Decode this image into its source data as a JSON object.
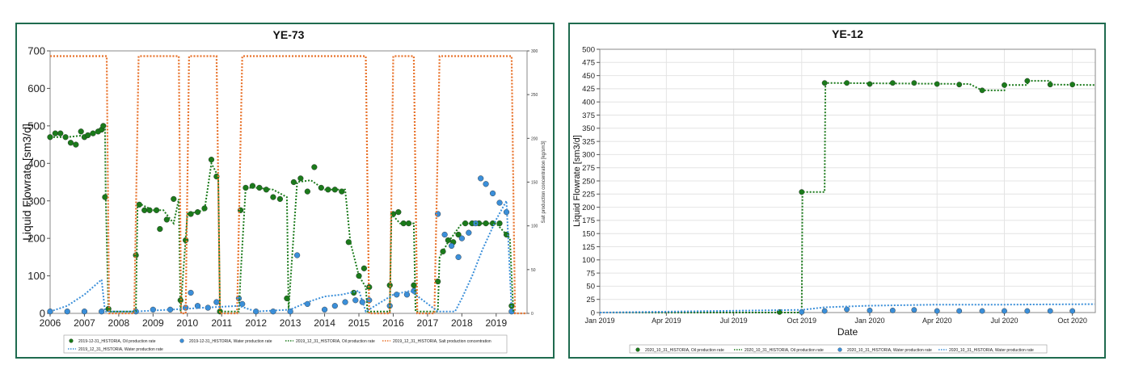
{
  "charts": [
    {
      "title": "YE-73",
      "ylabel": "Liquid Flowrate [sm3/d]",
      "y2label": "Salt production concentration [kg/sm3]",
      "xticks": [
        "2006",
        "2007",
        "2008",
        "2009",
        "2010",
        "2011",
        "2012",
        "2013",
        "2014",
        "2015",
        "2016",
        "2017",
        "2018",
        "2019"
      ],
      "yticks": [
        "0",
        "100",
        "200",
        "300",
        "400",
        "500",
        "600",
        "700"
      ],
      "y2ticks": [
        "0",
        "50",
        "100",
        "150",
        "200",
        "250",
        "300"
      ],
      "legend": [
        "2019-12-31_HISTORIA, Oil production rate",
        "2019-12-31_HISTORIA, Water production rate",
        "2019_12_31_HISTORIA, Oil production rate",
        "2019_12_31_HISTORIA, Salt production concentration",
        "2019_12_31_HISTORIA, Water production rate"
      ]
    },
    {
      "title": "YE-12",
      "xlabel": "Date",
      "ylabel": "Liquid Flowrate [sm3/d]",
      "xticks": [
        "Jan 2019",
        "Apr 2019",
        "Jul 2019",
        "Oct 2019",
        "Jan 2020",
        "Apr 2020",
        "Jul 2020",
        "Oct 2020"
      ],
      "yticks": [
        "0",
        "25",
        "50",
        "75",
        "100",
        "125",
        "150",
        "175",
        "200",
        "225",
        "250",
        "275",
        "300",
        "325",
        "350",
        "375",
        "400",
        "425",
        "450",
        "475",
        "500"
      ],
      "legend": [
        "2020_10_31_HISTORIA, Oil production rate",
        "2020_10_31_HISTORIA, Oil production rate",
        "2020_10_31_HISTORIA, Water production rate",
        "2020_10_31_HISTORIA, Water production rate"
      ]
    }
  ],
  "colors": {
    "oil": "#1b7a1b",
    "water": "#3b8fd9",
    "salt": "#e8722a",
    "frame": "#1f6b4f"
  },
  "chart_data": [
    {
      "type": "line",
      "title": "YE-73",
      "ylabel": "Liquid Flowrate [sm3/d]",
      "y2label": "Salt production concentration [kg/sm3]",
      "xlim": [
        2006.0,
        2019.9
      ],
      "ylim": [
        0,
        700
      ],
      "y2lim": [
        0,
        300
      ],
      "series": [
        {
          "name": "2019-12-31_HISTORIA, Oil production rate",
          "style": "markers",
          "x": [
            2006.0,
            2006.15,
            2006.3,
            2006.45,
            2006.6,
            2006.75,
            2006.9,
            2007.0,
            2007.1,
            2007.25,
            2007.4,
            2007.5,
            2007.55,
            2007.6,
            2007.7,
            2008.5,
            2008.6,
            2008.75,
            2008.9,
            2009.1,
            2009.2,
            2009.4,
            2009.6,
            2009.8,
            2009.95,
            2010.1,
            2010.3,
            2010.5,
            2010.7,
            2010.85,
            2010.95,
            2011.55,
            2011.7,
            2011.9,
            2012.1,
            2012.3,
            2012.5,
            2012.7,
            2012.9,
            2013.1,
            2013.3,
            2013.5,
            2013.7,
            2013.9,
            2014.1,
            2014.3,
            2014.5,
            2014.7,
            2014.85,
            2015.0,
            2015.15,
            2015.3,
            2015.9,
            2016.0,
            2016.15,
            2016.3,
            2016.45,
            2016.6,
            2017.3,
            2017.45,
            2017.6,
            2017.75,
            2017.9,
            2018.1,
            2018.3,
            2018.5,
            2018.7,
            2018.9,
            2019.1,
            2019.3,
            2019.45
          ],
          "y": [
            470,
            480,
            480,
            470,
            455,
            450,
            485,
            470,
            475,
            480,
            485,
            490,
            500,
            310,
            12,
            155,
            290,
            275,
            275,
            275,
            225,
            250,
            305,
            35,
            195,
            265,
            270,
            280,
            410,
            365,
            5,
            275,
            335,
            340,
            335,
            330,
            310,
            305,
            40,
            350,
            360,
            325,
            390,
            335,
            330,
            330,
            325,
            190,
            55,
            100,
            120,
            70,
            75,
            265,
            270,
            240,
            240,
            75,
            85,
            165,
            195,
            190,
            210,
            240,
            240,
            240,
            240,
            240,
            240,
            210,
            20
          ]
        },
        {
          "name": "2019-12-31_HISTORIA, Water production rate",
          "style": "markers",
          "x": [
            2006.0,
            2006.5,
            2007.0,
            2007.5,
            2008.5,
            2009.0,
            2009.5,
            2009.95,
            2010.1,
            2010.3,
            2010.6,
            2010.85,
            2011.5,
            2011.6,
            2012.0,
            2012.5,
            2013.0,
            2013.2,
            2013.5,
            2014.0,
            2014.3,
            2014.6,
            2014.9,
            2015.1,
            2015.3,
            2015.9,
            2016.1,
            2016.4,
            2016.6,
            2017.3,
            2017.5,
            2017.7,
            2017.9,
            2018.0,
            2018.2,
            2018.4,
            2018.55,
            2018.7,
            2018.9,
            2019.1,
            2019.3,
            2019.45
          ],
          "y": [
            5,
            5,
            5,
            5,
            5,
            10,
            10,
            15,
            55,
            20,
            15,
            30,
            40,
            25,
            5,
            5,
            5,
            155,
            25,
            10,
            20,
            30,
            35,
            30,
            35,
            20,
            50,
            50,
            60,
            265,
            210,
            180,
            150,
            200,
            215,
            240,
            360,
            345,
            320,
            295,
            270,
            5
          ]
        },
        {
          "name": "2019_12_31_HISTORIA, Oil production rate",
          "style": "dotted",
          "x": [
            2006.0,
            2006.5,
            2007.0,
            2007.4,
            2007.6,
            2007.62,
            2007.7,
            2008.5,
            2008.55,
            2009.0,
            2009.3,
            2009.6,
            2009.75,
            2009.8,
            2010.0,
            2010.5,
            2010.7,
            2010.9,
            2010.95,
            2011.5,
            2011.55,
            2011.7,
            2012.0,
            2012.5,
            2012.9,
            2012.95,
            2013.2,
            2013.6,
            2014.0,
            2014.6,
            2014.75,
            2015.0,
            2015.2,
            2015.25,
            2015.9,
            2015.95,
            2016.2,
            2016.6,
            2016.65,
            2017.3,
            2017.35,
            2017.6,
            2018.0,
            2018.5,
            2019.0,
            2019.4,
            2019.5
          ],
          "y": [
            470,
            470,
            475,
            485,
            490,
            310,
            5,
            5,
            295,
            275,
            275,
            240,
            305,
            5,
            265,
            275,
            400,
            365,
            5,
            5,
            100,
            335,
            335,
            330,
            310,
            10,
            350,
            355,
            330,
            330,
            190,
            100,
            70,
            5,
            5,
            265,
            240,
            240,
            5,
            5,
            150,
            190,
            240,
            240,
            240,
            200,
            5
          ]
        },
        {
          "name": "2019_12_31_HISTORIA, Salt production concentration",
          "style": "dotted",
          "axis": "y2",
          "x": [
            2006.0,
            2007.65,
            2007.72,
            2008.45,
            2008.58,
            2009.75,
            2009.82,
            2009.95,
            2010.05,
            2010.85,
            2010.95,
            2011.45,
            2011.6,
            2015.2,
            2015.3,
            2015.9,
            2016.0,
            2016.6,
            2016.7,
            2017.2,
            2017.35,
            2019.45,
            2019.55,
            2019.9
          ],
          "y": [
            294,
            294,
            0,
            0,
            294,
            294,
            0,
            0,
            294,
            294,
            0,
            0,
            294,
            294,
            0,
            0,
            294,
            294,
            0,
            0,
            294,
            294,
            0,
            0
          ]
        },
        {
          "name": "2019_12_31_HISTORIA, Water production rate",
          "style": "dotted",
          "x": [
            2006.0,
            2006.5,
            2007.0,
            2007.5,
            2007.6,
            2008.5,
            2009.5,
            2010.5,
            2011.5,
            2012.0,
            2013.0,
            2013.5,
            2014.0,
            2014.5,
            2015.0,
            2015.2,
            2016.0,
            2016.5,
            2017.3,
            2017.8,
            2018.0,
            2018.3,
            2018.6,
            2019.0,
            2019.3,
            2019.45
          ],
          "y": [
            5,
            20,
            50,
            90,
            5,
            5,
            10,
            15,
            20,
            5,
            10,
            30,
            45,
            50,
            60,
            5,
            50,
            60,
            5,
            5,
            40,
            100,
            170,
            250,
            300,
            10
          ]
        }
      ]
    },
    {
      "type": "line",
      "title": "YE-12",
      "xlabel": "Date",
      "ylabel": "Liquid Flowrate [sm3/d]",
      "xlim": [
        "2019-01-01",
        "2020-11-01"
      ],
      "ylim": [
        0,
        500
      ],
      "series": [
        {
          "name": "2020_10_31_HISTORIA, Oil production rate",
          "style": "markers",
          "x": [
            "2019-09-01",
            "2019-10-01",
            "2019-11-01",
            "2019-12-01",
            "2020-01-01",
            "2020-02-01",
            "2020-03-01",
            "2020-04-01",
            "2020-05-01",
            "2020-06-01",
            "2020-07-01",
            "2020-08-01",
            "2020-09-01",
            "2020-10-01"
          ],
          "y": [
            1,
            229,
            436,
            436,
            434,
            436,
            436,
            434,
            433,
            422,
            432,
            440,
            433,
            433
          ]
        },
        {
          "name": "2020_10_31_HISTORIA, Oil production rate",
          "style": "dotted",
          "x": [
            "2019-01-01",
            "2019-10-01",
            "2019-10-02",
            "2019-11-01",
            "2019-11-02",
            "2020-05-15",
            "2020-06-01",
            "2020-07-01",
            "2020-07-02",
            "2020-08-01",
            "2020-08-02",
            "2020-09-01",
            "2020-09-02",
            "2020-10-31"
          ],
          "y": [
            0,
            0,
            229,
            229,
            436,
            434,
            422,
            422,
            432,
            432,
            440,
            440,
            433,
            432
          ]
        },
        {
          "name": "2020_10_31_HISTORIA, Water production rate",
          "style": "markers",
          "x": [
            "2019-10-01",
            "2019-11-01",
            "2019-12-01",
            "2020-01-01",
            "2020-02-01",
            "2020-03-01",
            "2020-04-01",
            "2020-05-01",
            "2020-06-01",
            "2020-07-01",
            "2020-08-01",
            "2020-09-01",
            "2020-10-01"
          ],
          "y": [
            1,
            3,
            6,
            4,
            4,
            5,
            3,
            3,
            3,
            3,
            3,
            3,
            3
          ]
        },
        {
          "name": "2020_10_31_HISTORIA, Water production rate",
          "style": "dotted",
          "x": [
            "2019-01-01",
            "2019-10-01",
            "2019-11-01",
            "2020-01-01",
            "2020-04-01",
            "2020-07-01",
            "2020-10-31"
          ],
          "y": [
            0,
            5,
            10,
            13,
            15,
            15,
            16
          ]
        }
      ]
    }
  ]
}
